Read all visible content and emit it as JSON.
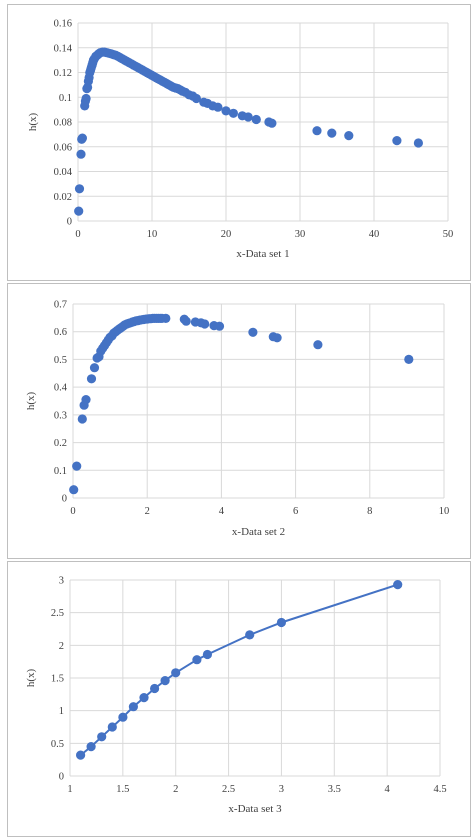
{
  "colors": {
    "marker": "#4472c4",
    "line": "#4472c4",
    "grid": "#d9d9d9",
    "text": "#404040",
    "border": "#bfbfbf"
  },
  "chart_data": [
    {
      "type": "scatter",
      "xlabel": "x-Data set 1",
      "ylabel": "h(x)",
      "xlim": [
        0,
        50
      ],
      "ylim": [
        0,
        0.16
      ],
      "xticks": [
        0,
        10,
        20,
        30,
        40,
        50
      ],
      "yticks": [
        0,
        0.02,
        0.04,
        0.06,
        0.08,
        0.1,
        0.12,
        0.14,
        0.16
      ],
      "xtick_labels": [
        "0",
        "10",
        "20",
        "30",
        "40",
        "50"
      ],
      "ytick_labels": [
        "0",
        "0.02",
        "0.04",
        "0.06",
        "0.08",
        "0.1",
        "0.12",
        "0.14",
        "0.16"
      ],
      "grid": true,
      "connected": false,
      "points": [
        [
          0.1,
          0.008
        ],
        [
          0.2,
          0.026
        ],
        [
          0.4,
          0.054
        ],
        [
          0.5,
          0.066
        ],
        [
          0.6,
          0.067
        ],
        [
          0.9,
          0.093
        ],
        [
          1.0,
          0.097
        ],
        [
          1.1,
          0.099
        ],
        [
          1.2,
          0.107
        ],
        [
          1.3,
          0.108
        ],
        [
          1.4,
          0.113
        ],
        [
          1.5,
          0.116
        ],
        [
          1.6,
          0.12
        ],
        [
          1.7,
          0.122
        ],
        [
          1.8,
          0.124
        ],
        [
          1.9,
          0.126
        ],
        [
          2.0,
          0.128
        ],
        [
          2.1,
          0.13
        ],
        [
          2.2,
          0.131
        ],
        [
          2.4,
          0.133
        ],
        [
          2.6,
          0.134
        ],
        [
          2.8,
          0.135
        ],
        [
          3.0,
          0.136
        ],
        [
          3.3,
          0.1365
        ],
        [
          3.6,
          0.1365
        ],
        [
          3.9,
          0.136
        ],
        [
          4.2,
          0.1355
        ],
        [
          4.5,
          0.135
        ],
        [
          4.8,
          0.1345
        ],
        [
          5.1,
          0.134
        ],
        [
          5.4,
          0.133
        ],
        [
          5.7,
          0.132
        ],
        [
          6.0,
          0.131
        ],
        [
          6.3,
          0.13
        ],
        [
          6.6,
          0.129
        ],
        [
          6.9,
          0.128
        ],
        [
          7.2,
          0.127
        ],
        [
          7.5,
          0.126
        ],
        [
          7.8,
          0.125
        ],
        [
          8.1,
          0.124
        ],
        [
          8.4,
          0.123
        ],
        [
          8.7,
          0.122
        ],
        [
          9.0,
          0.121
        ],
        [
          9.3,
          0.12
        ],
        [
          9.6,
          0.119
        ],
        [
          9.9,
          0.118
        ],
        [
          10.2,
          0.117
        ],
        [
          10.5,
          0.116
        ],
        [
          10.8,
          0.115
        ],
        [
          11.1,
          0.114
        ],
        [
          11.4,
          0.113
        ],
        [
          11.7,
          0.112
        ],
        [
          12.0,
          0.111
        ],
        [
          12.3,
          0.11
        ],
        [
          12.6,
          0.109
        ],
        [
          12.9,
          0.108
        ],
        [
          13.2,
          0.1075
        ],
        [
          13.5,
          0.107
        ],
        [
          13.8,
          0.106
        ],
        [
          14.1,
          0.105
        ],
        [
          14.5,
          0.104
        ],
        [
          15.0,
          0.102
        ],
        [
          15.5,
          0.101
        ],
        [
          16.0,
          0.099
        ],
        [
          17.0,
          0.096
        ],
        [
          17.5,
          0.095
        ],
        [
          18.2,
          0.093
        ],
        [
          18.9,
          0.092
        ],
        [
          20.0,
          0.089
        ],
        [
          21.0,
          0.087
        ],
        [
          22.2,
          0.085
        ],
        [
          23.0,
          0.084
        ],
        [
          24.1,
          0.082
        ],
        [
          25.8,
          0.08
        ],
        [
          26.2,
          0.079
        ],
        [
          32.3,
          0.073
        ],
        [
          34.3,
          0.071
        ],
        [
          36.6,
          0.069
        ],
        [
          43.1,
          0.065
        ],
        [
          46.0,
          0.063
        ]
      ]
    },
    {
      "type": "scatter",
      "xlabel": "x-Data set 2",
      "ylabel": "h(x)",
      "xlim": [
        0,
        10
      ],
      "ylim": [
        0,
        0.7
      ],
      "xticks": [
        0,
        2,
        4,
        6,
        8,
        10
      ],
      "yticks": [
        0,
        0.1,
        0.2,
        0.3,
        0.4,
        0.5,
        0.6,
        0.7
      ],
      "xtick_labels": [
        "0",
        "2",
        "4",
        "6",
        "8",
        "10"
      ],
      "ytick_labels": [
        "0",
        "0.1",
        "0.2",
        "0.3",
        "0.4",
        "0.5",
        "0.6",
        "0.7"
      ],
      "grid": true,
      "connected": false,
      "points": [
        [
          0.02,
          0.03
        ],
        [
          0.1,
          0.115
        ],
        [
          0.25,
          0.285
        ],
        [
          0.3,
          0.335
        ],
        [
          0.35,
          0.355
        ],
        [
          0.5,
          0.43
        ],
        [
          0.58,
          0.47
        ],
        [
          0.65,
          0.505
        ],
        [
          0.7,
          0.51
        ],
        [
          0.75,
          0.53
        ],
        [
          0.8,
          0.54
        ],
        [
          0.85,
          0.55
        ],
        [
          0.9,
          0.56
        ],
        [
          0.95,
          0.57
        ],
        [
          1.0,
          0.58
        ],
        [
          1.05,
          0.585
        ],
        [
          1.1,
          0.595
        ],
        [
          1.15,
          0.6
        ],
        [
          1.2,
          0.605
        ],
        [
          1.25,
          0.61
        ],
        [
          1.3,
          0.615
        ],
        [
          1.35,
          0.62
        ],
        [
          1.4,
          0.625
        ],
        [
          1.45,
          0.628
        ],
        [
          1.5,
          0.63
        ],
        [
          1.55,
          0.632
        ],
        [
          1.6,
          0.635
        ],
        [
          1.65,
          0.637
        ],
        [
          1.7,
          0.639
        ],
        [
          1.75,
          0.64
        ],
        [
          1.8,
          0.642
        ],
        [
          1.85,
          0.643
        ],
        [
          1.9,
          0.644
        ],
        [
          1.95,
          0.645
        ],
        [
          2.0,
          0.646
        ],
        [
          2.05,
          0.647
        ],
        [
          2.1,
          0.647
        ],
        [
          2.15,
          0.648
        ],
        [
          2.2,
          0.648
        ],
        [
          2.25,
          0.648
        ],
        [
          2.3,
          0.648
        ],
        [
          2.35,
          0.648
        ],
        [
          2.4,
          0.648
        ],
        [
          2.5,
          0.648
        ],
        [
          3.0,
          0.645
        ],
        [
          3.05,
          0.638
        ],
        [
          3.3,
          0.635
        ],
        [
          3.45,
          0.632
        ],
        [
          3.55,
          0.628
        ],
        [
          3.8,
          0.622
        ],
        [
          3.95,
          0.62
        ],
        [
          4.85,
          0.598
        ],
        [
          5.4,
          0.582
        ],
        [
          5.5,
          0.578
        ],
        [
          6.6,
          0.553
        ],
        [
          9.05,
          0.5
        ]
      ]
    },
    {
      "type": "line",
      "xlabel": "x-Data set 3",
      "ylabel": "h(x)",
      "xlim": [
        0,
        4.5
      ],
      "ylim": [
        0,
        3
      ],
      "xticks": [
        1,
        1.5,
        2,
        2.5,
        3,
        3.5,
        4,
        4.5
      ],
      "yticks": [
        0,
        0.5,
        1,
        1.5,
        2,
        2.5,
        3
      ],
      "xtick_labels": [
        "1",
        "1.5",
        "2",
        "2.5",
        "3",
        "3.5",
        "4",
        "4.5"
      ],
      "ytick_labels": [
        "0",
        "0.5",
        "1",
        "1.5",
        "2",
        "2.5",
        "3"
      ],
      "x_axis_min_shown": 1,
      "grid": true,
      "connected": true,
      "points": [
        [
          1.1,
          0.32
        ],
        [
          1.2,
          0.45
        ],
        [
          1.3,
          0.6
        ],
        [
          1.4,
          0.75
        ],
        [
          1.5,
          0.9
        ],
        [
          1.6,
          1.06
        ],
        [
          1.7,
          1.2
        ],
        [
          1.8,
          1.34
        ],
        [
          1.9,
          1.46
        ],
        [
          2.0,
          1.58
        ],
        [
          2.2,
          1.78
        ],
        [
          2.3,
          1.86
        ],
        [
          2.7,
          2.16
        ],
        [
          3.0,
          2.35
        ],
        [
          4.1,
          2.93
        ]
      ]
    }
  ]
}
